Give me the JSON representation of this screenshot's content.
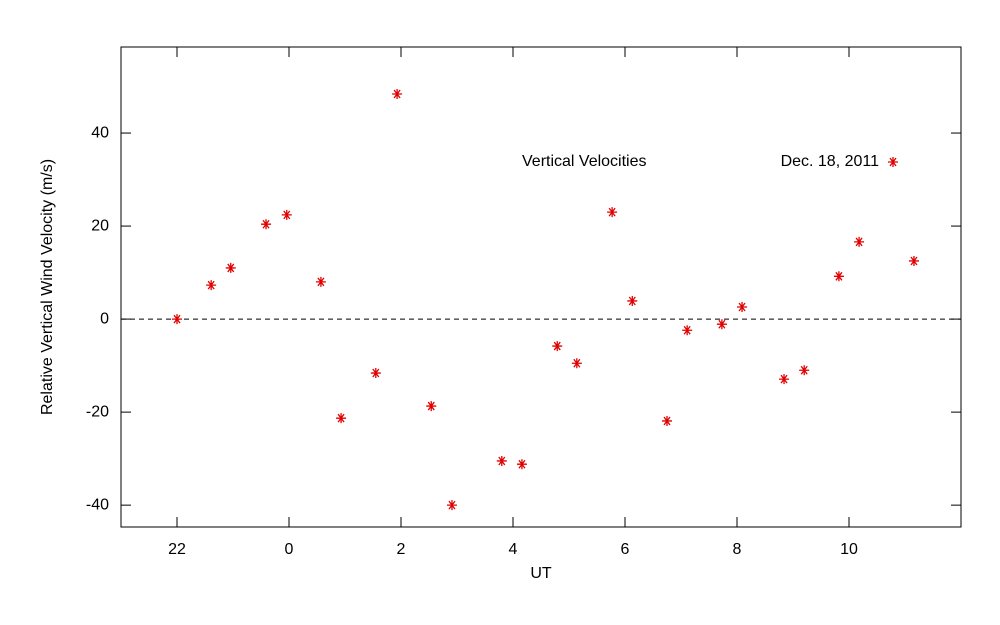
{
  "chart_data": {
    "type": "scatter",
    "xlabel": "UT",
    "ylabel": "Relative Vertical Wind Velocity (m/s)",
    "annotation": "Vertical Velocities",
    "xlim": [
      -3,
      12
    ],
    "ylim": [
      -44.7,
      58.5
    ],
    "xticks": [
      {
        "value": -2,
        "label": "22"
      },
      0,
      2,
      4,
      6,
      8,
      10
    ],
    "yticks": [
      -40,
      -20,
      0,
      20,
      40
    ],
    "hline": 0,
    "legend": "upper right",
    "series": [
      {
        "name": "Dec. 18, 2011",
        "color": "#e00000",
        "x": [
          -2.0,
          -1.39,
          -1.04,
          -0.41,
          -0.04,
          0.57,
          0.93,
          1.55,
          1.93,
          2.54,
          2.91,
          3.8,
          4.16,
          4.79,
          5.14,
          5.77,
          6.13,
          6.75,
          7.11,
          7.73,
          8.09,
          8.84,
          9.2,
          9.82,
          10.18,
          11.16
        ],
        "values": [
          0,
          7.3,
          11.0,
          20.4,
          22.4,
          8.0,
          -21.3,
          -11.6,
          48.4,
          -18.7,
          -40.0,
          -30.5,
          -31.2,
          -5.8,
          -9.5,
          23.0,
          3.9,
          -21.9,
          -2.4,
          -1.1,
          2.6,
          -12.9,
          -11.0,
          9.2,
          16.6,
          12.5
        ]
      }
    ]
  }
}
